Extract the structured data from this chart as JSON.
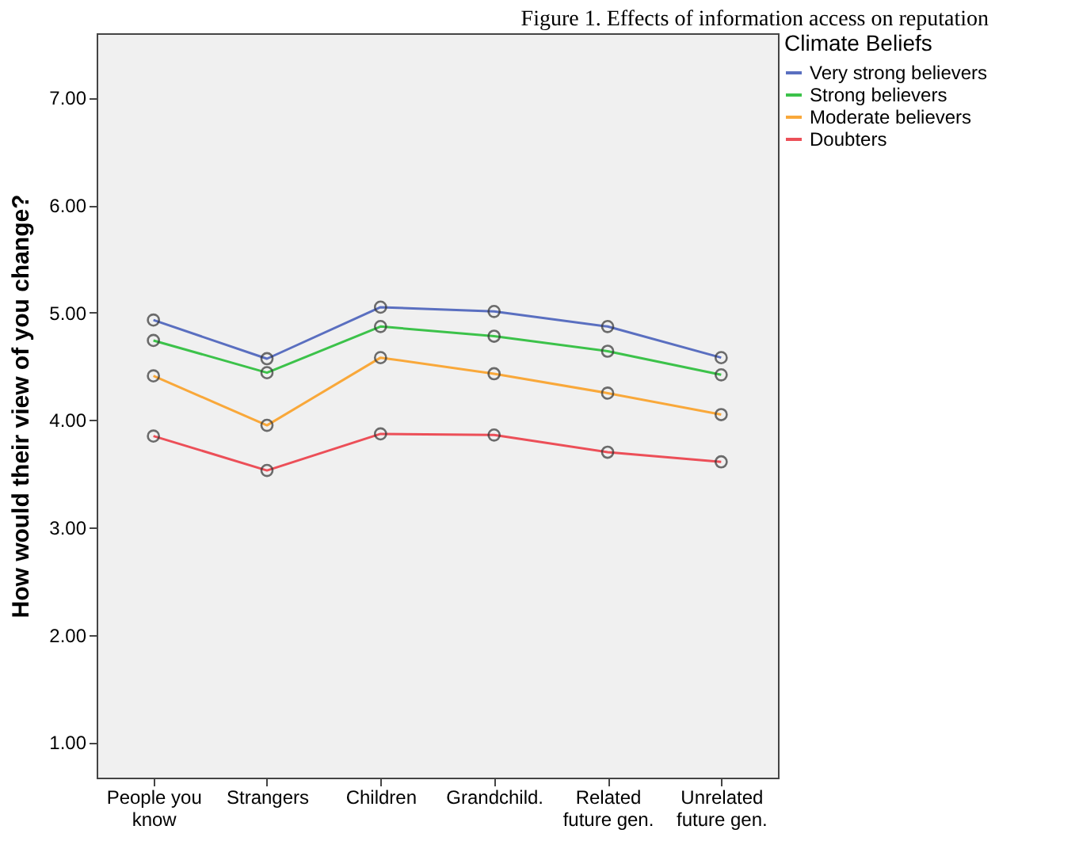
{
  "chart_data": {
    "type": "line",
    "title": "Figure 1. Effects of information access on reputation",
    "ylabel": "How would their view of you change?",
    "legend_title": "Climate Beliefs",
    "categories": [
      "People you\nknow",
      "Strangers",
      "Children",
      "Grandchild.",
      "Related\nfuture gen.",
      "Unrelated\nfuture gen."
    ],
    "series": [
      {
        "name": "Very strong believers",
        "color": "#5a6fc0",
        "values": [
          4.93,
          4.57,
          5.05,
          5.01,
          4.87,
          4.58
        ]
      },
      {
        "name": "Strong believers",
        "color": "#3cc24a",
        "values": [
          4.74,
          4.44,
          4.87,
          4.78,
          4.64,
          4.42
        ]
      },
      {
        "name": "Moderate believers",
        "color": "#f9a83a",
        "values": [
          4.41,
          3.95,
          4.58,
          4.43,
          4.25,
          4.05
        ]
      },
      {
        "name": "Doubters",
        "color": "#ec4f58",
        "values": [
          3.85,
          3.53,
          3.87,
          3.86,
          3.7,
          3.61
        ]
      }
    ],
    "ylim": [
      0.67,
      7.6
    ],
    "yticks": [
      {
        "value": 1,
        "label": "1.00"
      },
      {
        "value": 2,
        "label": "2.00"
      },
      {
        "value": 3,
        "label": "3.00"
      },
      {
        "value": 4,
        "label": "4.00"
      },
      {
        "value": 5,
        "label": "5.00"
      },
      {
        "value": 6,
        "label": "6.00"
      },
      {
        "value": 7,
        "label": "7.00"
      }
    ],
    "grid": false,
    "legend": "top right",
    "marker": "circle",
    "line_style": "solid"
  }
}
